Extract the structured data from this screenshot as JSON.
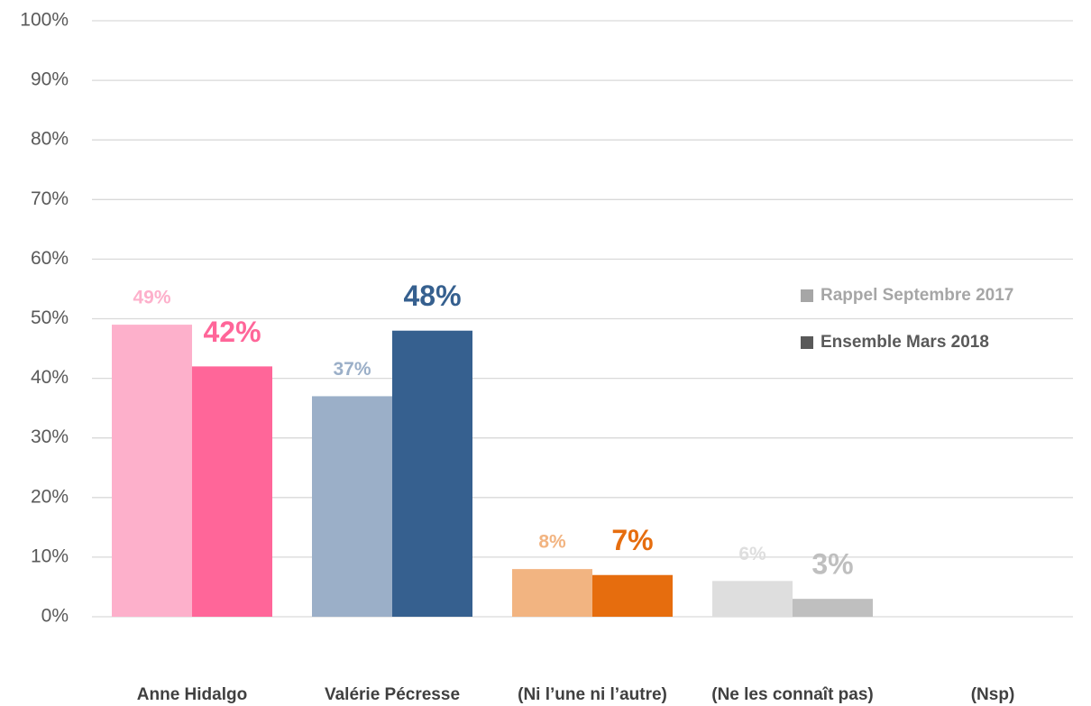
{
  "chart_data": {
    "type": "bar",
    "categories": [
      "Anne Hidalgo",
      "Valérie Pécresse",
      "(Ni l’une ni l’autre)",
      "(Ne les connaît pas)",
      "(Nsp)"
    ],
    "series": [
      {
        "name": "Rappel Septembre 2017",
        "color": "#a6a6a6",
        "values": [
          49,
          37,
          8,
          6,
          null
        ],
        "value_labels": [
          "49%",
          "37%",
          "8%",
          "6%",
          null
        ],
        "colors": [
          "#fdb0cb",
          "#9bafc8",
          "#f2b481",
          "#dedede",
          null
        ]
      },
      {
        "name": "Ensemble Mars 2018",
        "color": "#595959",
        "values": [
          42,
          48,
          7,
          3,
          null
        ],
        "value_labels": [
          "42%",
          "48%",
          "7%",
          "3%",
          null
        ],
        "colors": [
          "#ff6699",
          "#36608f",
          "#e66d0e",
          "#bfbfbf",
          null
        ]
      }
    ],
    "ylim": [
      0,
      100
    ],
    "yticks": [
      {
        "value": 0,
        "label": "0%"
      },
      {
        "value": 10,
        "label": "10%"
      },
      {
        "value": 20,
        "label": "20%"
      },
      {
        "value": 30,
        "label": "30%"
      },
      {
        "value": 40,
        "label": "40%"
      },
      {
        "value": 50,
        "label": "50%"
      },
      {
        "value": 60,
        "label": "60%"
      },
      {
        "value": 70,
        "label": "70%"
      },
      {
        "value": 80,
        "label": "80%"
      },
      {
        "value": 90,
        "label": "90%"
      },
      {
        "value": 100,
        "label": "100%"
      }
    ],
    "grid": true,
    "legend": "right"
  }
}
